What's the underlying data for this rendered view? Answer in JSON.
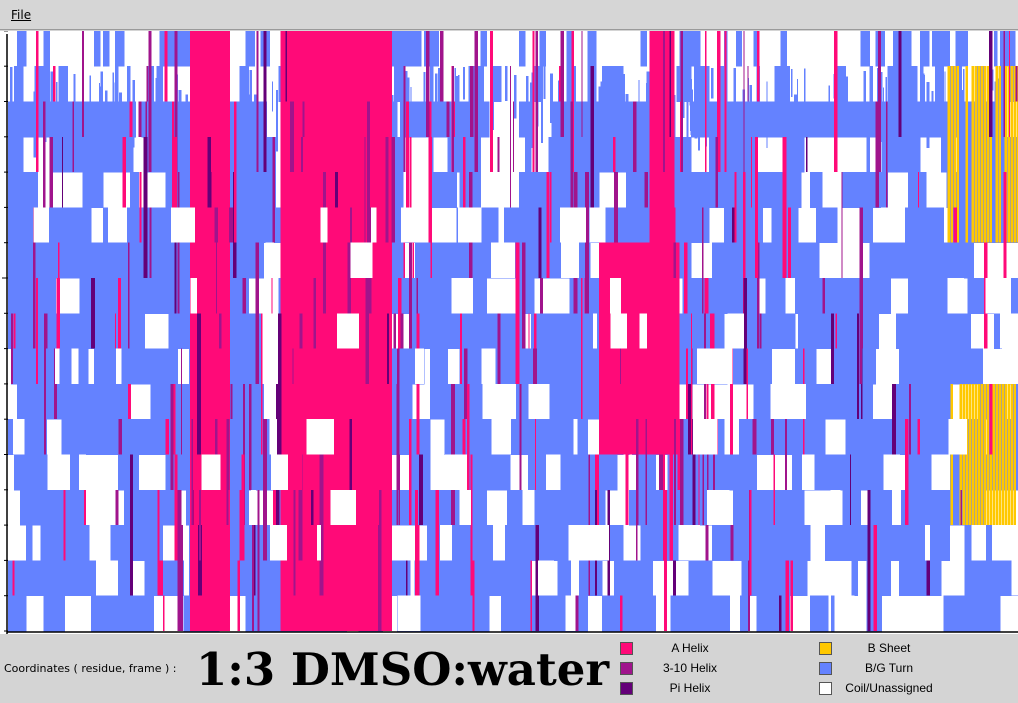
{
  "menu": {
    "file_label": "File"
  },
  "footer": {
    "coordinates_label": "Coordinates ( residue, frame ) :",
    "title": "1:3 DMSO:water"
  },
  "legend": [
    {
      "label": "A Helix",
      "color": "#ff0a78"
    },
    {
      "label": "3-10 Helix",
      "color": "#a0148c"
    },
    {
      "label": "Pi Helix",
      "color": "#640078"
    },
    {
      "label": "B Sheet",
      "color": "#ffc800"
    },
    {
      "label": "B/G Turn",
      "color": "#6482ff"
    },
    {
      "label": "Coil/Unassigned",
      "color": "#ffffff"
    }
  ],
  "chart_data": {
    "type": "heatmap",
    "title": "1:3 DMSO:water",
    "xlabel": "residue",
    "ylabel": "frame",
    "rows": 17,
    "legend_placement": "bottom-right",
    "categories": [
      "A Helix",
      "3-10 Helix",
      "Pi Helix",
      "B Sheet",
      "B/G Turn",
      "Coil/Unassigned"
    ],
    "dominant_regions": [
      {
        "structure": "A Helix",
        "residue_range": [
          0.18,
          0.22
        ],
        "frame_rows": [
          1,
          17
        ]
      },
      {
        "structure": "A Helix",
        "residue_range": [
          0.27,
          0.38
        ],
        "frame_rows": [
          1,
          17
        ]
      },
      {
        "structure": "A Helix",
        "residue_range": [
          0.585,
          0.665
        ],
        "frame_rows": [
          6,
          11
        ]
      },
      {
        "structure": "A Helix",
        "residue_range": [
          0.635,
          0.66
        ],
        "frame_rows": [
          11,
          17
        ]
      },
      {
        "structure": "B Sheet",
        "residue_range": [
          0.93,
          1.0
        ],
        "frame_rows": [
          4,
          7
        ]
      },
      {
        "structure": "B Sheet",
        "residue_range": [
          0.93,
          1.0
        ],
        "frame_rows": [
          12,
          16
        ]
      },
      {
        "structure": "B/G Turn",
        "residue_range": [
          0.0,
          1.0
        ],
        "frame_rows": [
          1,
          17
        ]
      }
    ]
  }
}
